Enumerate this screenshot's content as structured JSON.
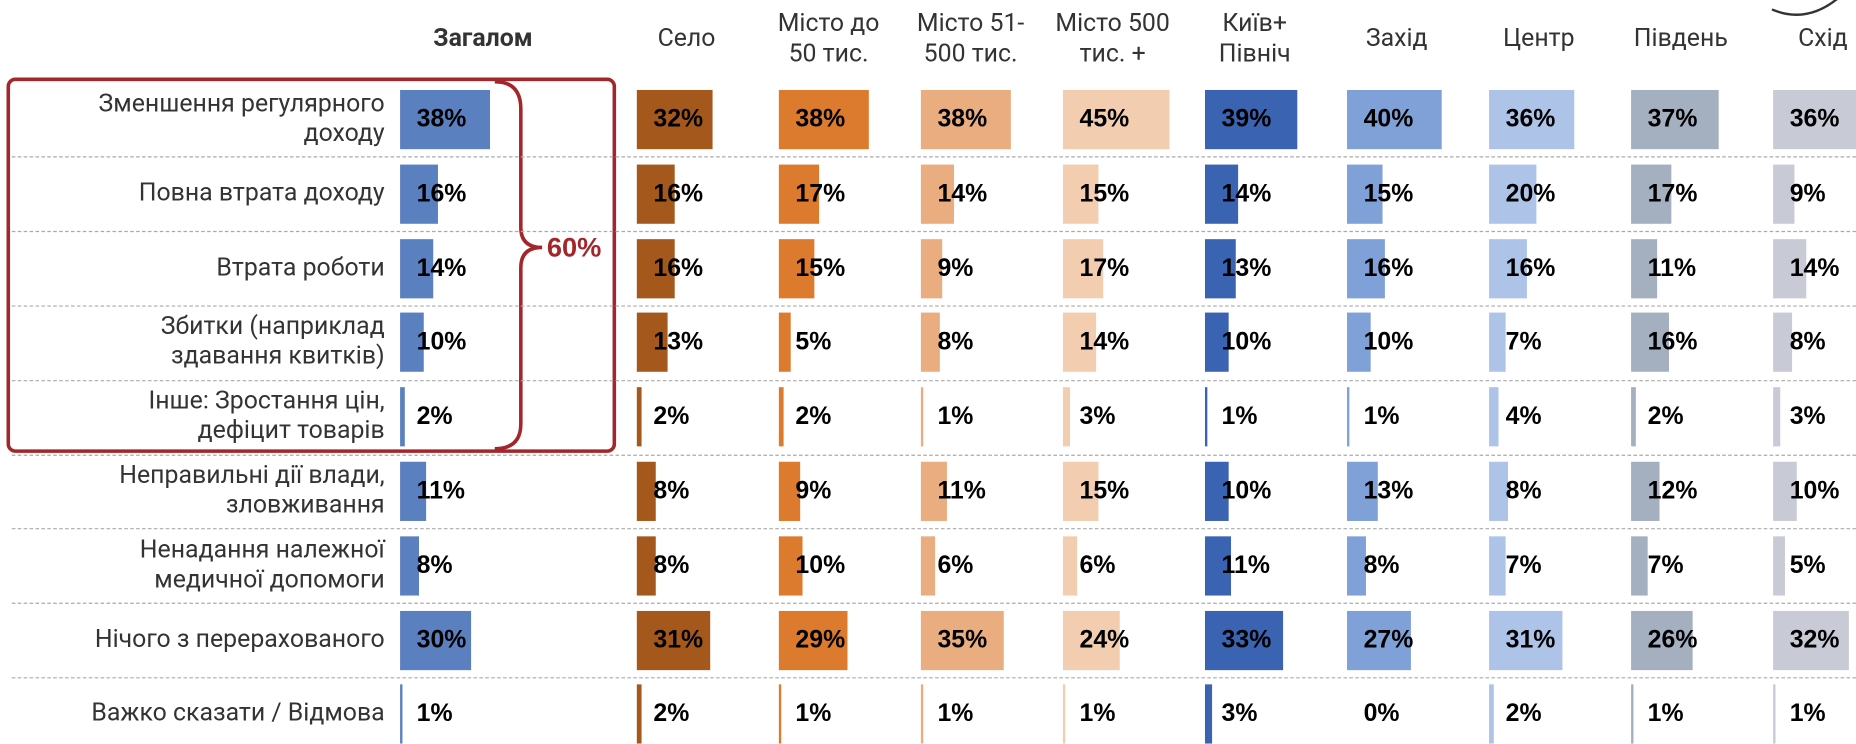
{
  "chart_data": {
    "type": "bar",
    "categories": [
      "Зменшення регулярного\nдоходу",
      "Повна втрата доходу",
      "Втрата роботи",
      "Збитки (наприклад\nздавання квитків)",
      "Інше: Зростання цін,\nдефіцит товарів",
      "Неправильні дії влади,\nзловживання",
      "Ненадання належної\nмедичної допомоги",
      "Нічого з перерахованого",
      "Важко сказати / Відмова"
    ],
    "annotation": "60%",
    "series": [
      {
        "name": "Загалом",
        "color": "#5b80c0",
        "values": [
          38,
          16,
          14,
          10,
          2,
          11,
          8,
          30,
          1
        ],
        "value_labels": [
          "38%",
          "16%",
          "14%",
          "10%",
          "2%",
          "11%",
          "8%",
          "30%",
          "1%"
        ]
      },
      {
        "name": "Село",
        "color": "#a5581c",
        "values": [
          32,
          16,
          16,
          13,
          2,
          8,
          8,
          31,
          2
        ],
        "value_labels": [
          "32%",
          "16%",
          "16%",
          "13%",
          "2%",
          "8%",
          "8%",
          "31%",
          "2%"
        ]
      },
      {
        "name": "Місто до\n50 тис.",
        "color": "#dc7a2e",
        "values": [
          38,
          17,
          15,
          5,
          2,
          9,
          10,
          29,
          1
        ],
        "value_labels": [
          "38%",
          "17%",
          "15%",
          "5%",
          "2%",
          "9%",
          "10%",
          "29%",
          "1%"
        ]
      },
      {
        "name": "Місто 51-\n500 тис.",
        "color": "#e9ad80",
        "values": [
          38,
          14,
          9,
          8,
          1,
          11,
          6,
          35,
          1
        ],
        "value_labels": [
          "38%",
          "14%",
          "9%",
          "8%",
          "1%",
          "11%",
          "6%",
          "35%",
          "1%"
        ]
      },
      {
        "name": "Місто  500\nтис. +",
        "color": "#f3cdb0",
        "values": [
          45,
          15,
          17,
          14,
          3,
          15,
          6,
          24,
          1
        ],
        "value_labels": [
          "45%",
          "15%",
          "17%",
          "14%",
          "3%",
          "15%",
          "6%",
          "24%",
          "1%"
        ]
      },
      {
        "name": "Київ+\nПівніч",
        "color": "#3a63b1",
        "values": [
          39,
          14,
          13,
          10,
          1,
          10,
          11,
          33,
          3
        ],
        "value_labels": [
          "39%",
          "14%",
          "13%",
          "10%",
          "1%",
          "10%",
          "11%",
          "33%",
          "3%"
        ]
      },
      {
        "name": "Захід",
        "color": "#80a0d8",
        "values": [
          40,
          15,
          16,
          10,
          1,
          13,
          8,
          27,
          0
        ],
        "value_labels": [
          "40%",
          "15%",
          "16%",
          "10%",
          "1%",
          "13%",
          "8%",
          "27%",
          "0%"
        ]
      },
      {
        "name": "Центр",
        "color": "#adc4e8",
        "values": [
          36,
          20,
          16,
          7,
          4,
          8,
          7,
          31,
          2
        ],
        "value_labels": [
          "36%",
          "20%",
          "16%",
          "7%",
          "4%",
          "8%",
          "7%",
          "31%",
          "2%"
        ]
      },
      {
        "name": "Південь",
        "color": "#a4afc0",
        "values": [
          37,
          17,
          11,
          16,
          2,
          12,
          7,
          26,
          1
        ],
        "value_labels": [
          "37%",
          "17%",
          "11%",
          "16%",
          "2%",
          "12%",
          "7%",
          "26%",
          "1%"
        ]
      },
      {
        "name": "Схід",
        "color": "#c8cad6",
        "values": [
          36,
          9,
          14,
          8,
          3,
          10,
          5,
          32,
          1
        ],
        "value_labels": [
          "36%",
          "9%",
          "14%",
          "8%",
          "3%",
          "10%",
          "5%",
          "32%",
          "1%"
        ]
      }
    ]
  }
}
